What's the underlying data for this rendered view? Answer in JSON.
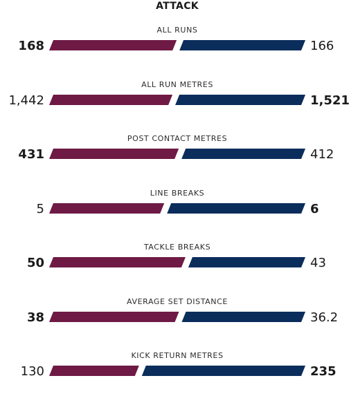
{
  "section": {
    "title": "ATTACK"
  },
  "colors": {
    "home": "#6e1a45",
    "away": "#0b2d5c"
  },
  "stats": [
    {
      "label": "ALL RUNS",
      "home_display": "168",
      "away_display": "166",
      "home_value": 168,
      "away_value": 166,
      "leader": "home"
    },
    {
      "label": "ALL RUN METRES",
      "home_display": "1,442",
      "away_display": "1,521",
      "home_value": 1442,
      "away_value": 1521,
      "leader": "away"
    },
    {
      "label": "POST CONTACT METRES",
      "home_display": "431",
      "away_display": "412",
      "home_value": 431,
      "away_value": 412,
      "leader": "home"
    },
    {
      "label": "LINE BREAKS",
      "home_display": "5",
      "away_display": "6",
      "home_value": 5,
      "away_value": 6,
      "leader": "away"
    },
    {
      "label": "TACKLE BREAKS",
      "home_display": "50",
      "away_display": "43",
      "home_value": 50,
      "away_value": 43,
      "leader": "home"
    },
    {
      "label": "AVERAGE SET DISTANCE",
      "home_display": "38",
      "away_display": "36.2",
      "home_value": 38,
      "away_value": 36.2,
      "leader": "home"
    },
    {
      "label": "KICK RETURN METRES",
      "home_display": "130",
      "away_display": "235",
      "home_value": 130,
      "away_value": 235,
      "leader": "away"
    }
  ]
}
